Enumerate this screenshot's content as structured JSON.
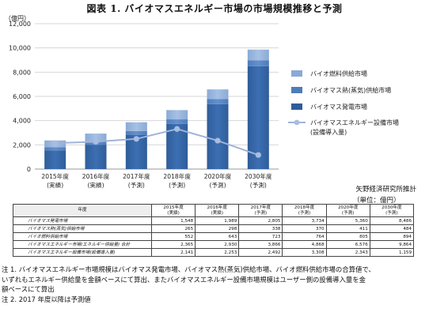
{
  "title": "図表 1. バイオマスエネルギー市場の市場規模推移と予測",
  "unit_top": "（億円）",
  "source": "矢野経済研究所推計",
  "table_unit": "（単位：億円）",
  "colors": {
    "power": "#2f5d99",
    "heat": "#4f7cba",
    "fuel": "#8aaad6",
    "equipment_line": "#9fb3d9",
    "equipment_marker": "#a9bde0"
  },
  "chart_data": {
    "type": "bar",
    "stacked": true,
    "categories": [
      "2015年度\n(実績)",
      "2016年度\n(実績)",
      "2017年度\n(予測)",
      "2018年度\n(予測)",
      "2020年度\n(予測)",
      "2030年度\n(予測)"
    ],
    "series": [
      {
        "name": "バイオマス発電市場",
        "type": "bar",
        "values": [
          1548,
          1989,
          2805,
          3734,
          5360,
          8486
        ]
      },
      {
        "name": "バイオマス熱(蒸気)供給市場",
        "type": "bar",
        "values": [
          265,
          298,
          338,
          370,
          411,
          484
        ]
      },
      {
        "name": "バイオ燃料供給市場",
        "type": "bar",
        "values": [
          552,
          643,
          723,
          764,
          805,
          894
        ]
      },
      {
        "name": "バイオマスエネルギー設備市場\n(設備導入量)",
        "type": "line",
        "values": [
          2141,
          2253,
          2492,
          3308,
          2343,
          1159
        ]
      }
    ],
    "ylim": [
      0,
      12000
    ],
    "yticks": [
      "0",
      "2,000",
      "4,000",
      "6,000",
      "8,000",
      "10,000",
      "12,000"
    ],
    "ytick_values": [
      0,
      2000,
      4000,
      6000,
      8000,
      10000,
      12000
    ],
    "grid": true,
    "legend_position": "right",
    "legend_order": [
      "バイオ燃料供給市場",
      "バイオマス熱(蒸気)供給市場",
      "バイオマス発電市場",
      "バイオマスエネルギー設備市場\n(設備導入量)"
    ]
  },
  "table": {
    "head_label": "年度",
    "years": [
      {
        "year": "2015年度",
        "sub": "(実績)"
      },
      {
        "year": "2016年度",
        "sub": "(実績)"
      },
      {
        "year": "2017年度",
        "sub": "(予測)"
      },
      {
        "year": "2018年度",
        "sub": "(予測)"
      },
      {
        "year": "2020年度",
        "sub": "(予測)"
      },
      {
        "year": "2030年度",
        "sub": "(予測)"
      }
    ],
    "rows": [
      {
        "label": "バイオマス発電市場",
        "values": [
          "1,548",
          "1,989",
          "2,805",
          "3,734",
          "5,360",
          "8,486"
        ]
      },
      {
        "label": "バイオマス熱(蒸気)供給市場",
        "values": [
          "265",
          "298",
          "338",
          "370",
          "411",
          "484"
        ]
      },
      {
        "label": "バイオ燃料供給市場",
        "values": [
          "552",
          "643",
          "723",
          "764",
          "805",
          "894"
        ]
      },
      {
        "label": "バイオマスエネルギー市場(エネルギー供給量) 合計",
        "values": [
          "2,365",
          "2,930",
          "3,866",
          "4,868",
          "6,576",
          "9,864"
        ]
      },
      {
        "label": "バイオマスエネルギー設備市場(設備導入量)",
        "values": [
          "2,141",
          "2,253",
          "2,492",
          "3,308",
          "2,343",
          "1,159"
        ]
      }
    ]
  },
  "notes": [
    "注 1. バイオマスエネルギー市場規模はバイオマス発電市場、バイオマス熱(蒸気)供給市場、バイオ燃料供給市場の合算値で、",
    "いずれもエネルギー供給量を金額ベースにて算出、またバイオマスエネルギー設備市場規模はユーザー側の設備導入量を金",
    "額ベースにて算出",
    "注 2. 2017 年度以降は予測値"
  ]
}
